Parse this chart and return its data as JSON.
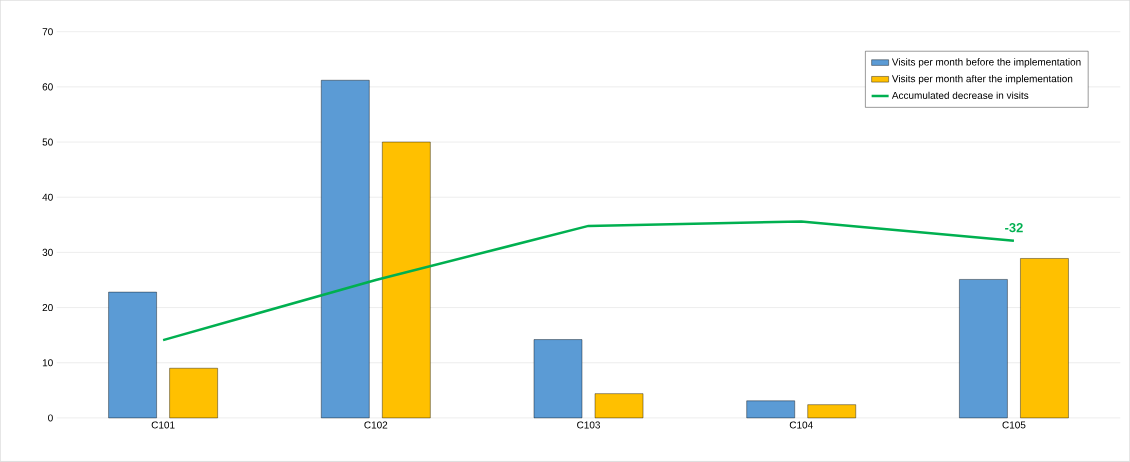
{
  "chart_data": {
    "type": "bar",
    "categories": [
      "C101",
      "C102",
      "C103",
      "C104",
      "C105"
    ],
    "series": [
      {
        "name": "Visits per month before the implementation",
        "color": "#5b9bd5",
        "values": [
          22.8,
          61.2,
          14.2,
          3.1,
          25.1
        ]
      },
      {
        "name": "Visits per month after the implementation",
        "color": "#ffc000",
        "values": [
          9,
          50,
          4.4,
          2.4,
          28.9
        ]
      },
      {
        "name": "Accumulated decrease in visits",
        "type": "line",
        "color": "#00b050",
        "values": [
          14.1,
          25,
          34.8,
          35.6,
          32.1
        ]
      }
    ],
    "ylim": [
      0,
      70
    ],
    "yticks": [
      0,
      10,
      20,
      30,
      40,
      50,
      60,
      70
    ],
    "grid": "y",
    "legend": "top right",
    "annotations": [
      {
        "text": "-32",
        "x": "C105",
        "y": 32.1
      }
    ]
  }
}
